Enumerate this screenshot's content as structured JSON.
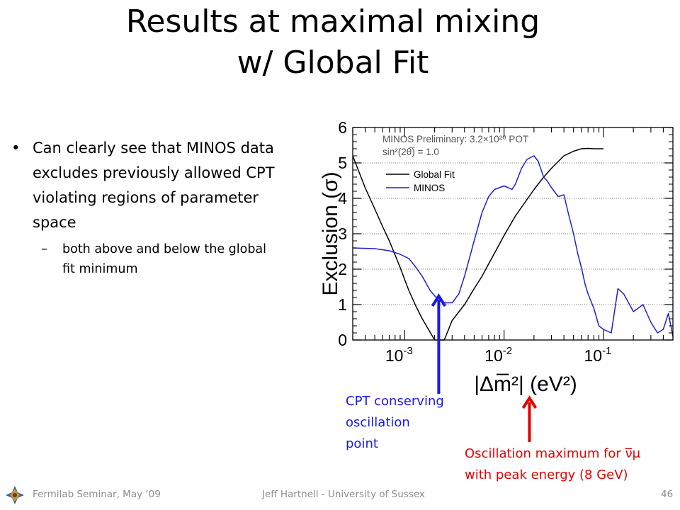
{
  "slide": {
    "title_line1": "Results at maximal mixing",
    "title_line2": "w/ Global Fit",
    "bullet1": "Can clearly see that MINOS data excludes previously allowed CPT violating regions of parameter space",
    "sub_bullet1": "both above and below the global fit minimum",
    "annotation_blue": [
      "CPT conserving",
      "oscillation",
      "point"
    ],
    "annotation_red": [
      "Oscillation maximum for ν̅μ",
      "with peak energy (8 GeV)"
    ],
    "footer_left": "Fermilab Seminar, May ‘09",
    "footer_center": "Jeff Hartnell - University of Sussex",
    "footer_right": "46",
    "colors": {
      "blue_annotation": "#1a1ae6",
      "red_annotation": "#e60000",
      "footer_text": "#8c8c8c"
    }
  },
  "chart_data": {
    "type": "line",
    "xscale": "log",
    "xlim": [
      0.0003,
      0.5
    ],
    "ylim": [
      0,
      6
    ],
    "xlabel": "|Δm̅²| (eV²)",
    "ylabel": "Exclusion (σ)",
    "xticks": [
      0.001,
      0.01,
      0.1
    ],
    "xtick_labels": [
      "10-3",
      "10-2",
      "10-1"
    ],
    "yticks": [
      0,
      1,
      2,
      3,
      4,
      5,
      6
    ],
    "ytick_labels": [
      "0",
      "1",
      "2",
      "3",
      "4",
      "5",
      "6"
    ],
    "grid": "horizontal dotted",
    "annotations": [
      "MINOS Preliminary: 3.2×10²⁰ POT",
      "sin²(2θ̅) = 1.0"
    ],
    "legend_position": "upper-left",
    "series": [
      {
        "name": "Global Fit",
        "color": "#000000",
        "x": [
          0.0003,
          0.0004,
          0.0005,
          0.0006,
          0.0007,
          0.0008,
          0.0009,
          0.001,
          0.0011,
          0.0013,
          0.0015,
          0.002,
          0.0025,
          0.003,
          0.004,
          0.005,
          0.006,
          0.007,
          0.008,
          0.01,
          0.013,
          0.015,
          0.02,
          0.025,
          0.03,
          0.04,
          0.05,
          0.06,
          0.07,
          0.08,
          0.1
        ],
        "y": [
          5.2,
          4.3,
          3.7,
          3.2,
          2.8,
          2.4,
          2.05,
          1.7,
          1.4,
          0.95,
          0.6,
          0.0,
          0.0,
          0.55,
          1.0,
          1.45,
          1.8,
          2.15,
          2.45,
          2.95,
          3.5,
          3.75,
          4.25,
          4.6,
          4.85,
          5.2,
          5.33,
          5.4,
          5.41,
          5.4,
          5.4
        ]
      },
      {
        "name": "MINOS",
        "color": "#1f1fd6",
        "x": [
          0.0003,
          0.0005,
          0.0007,
          0.0009,
          0.0011,
          0.0013,
          0.0015,
          0.0018,
          0.002,
          0.0022,
          0.0025,
          0.003,
          0.0035,
          0.004,
          0.005,
          0.006,
          0.007,
          0.008,
          0.01,
          0.011,
          0.012,
          0.013,
          0.015,
          0.017,
          0.02,
          0.022,
          0.025,
          0.027,
          0.03,
          0.035,
          0.04,
          0.045,
          0.05,
          0.055,
          0.06,
          0.065,
          0.07,
          0.08,
          0.09,
          0.1,
          0.12,
          0.14,
          0.16,
          0.2,
          0.25,
          0.3,
          0.35,
          0.4,
          0.45,
          0.5
        ],
        "y": [
          2.6,
          2.58,
          2.52,
          2.42,
          2.3,
          2.05,
          1.8,
          1.4,
          1.25,
          1.12,
          1.05,
          1.05,
          1.3,
          1.8,
          2.8,
          3.6,
          4.05,
          4.25,
          4.35,
          4.3,
          4.25,
          4.4,
          4.85,
          5.1,
          5.2,
          5.05,
          4.6,
          4.5,
          4.3,
          4.05,
          4.1,
          3.5,
          3.0,
          2.45,
          2.05,
          1.6,
          1.3,
          0.9,
          0.4,
          0.3,
          0.2,
          1.45,
          1.3,
          0.8,
          1.0,
          0.5,
          0.2,
          0.3,
          0.75,
          0.1
        ]
      }
    ],
    "arrows": [
      {
        "color": "#1a1ae6",
        "x": 0.0022,
        "direction": "up"
      },
      {
        "color": "#e60000",
        "x": 0.018,
        "direction": "up"
      }
    ]
  }
}
